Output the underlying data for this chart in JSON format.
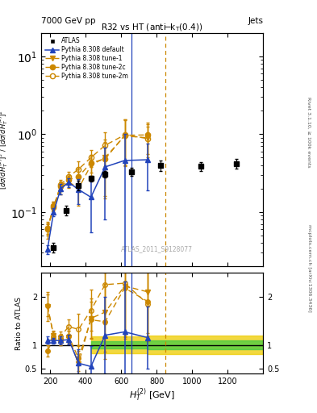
{
  "title_main": "R32 vs HT (anti-k$_{T}$(0.4))",
  "top_left_label": "7000 GeV pp",
  "top_right_label": "Jets",
  "watermark": "ATLAS_2011_S9128077",
  "rivet_label": "Rivet 3.1.10, ≥ 100k events",
  "arxiv_label": "mcplots.cern.ch [arXiv:1306.3436]",
  "xlabel": "$H_T^{(2)}$ [GeV]",
  "ylabel_ratio": "Ratio to ATLAS",
  "ylim_main_log": [
    0.02,
    20
  ],
  "ylim_ratio": [
    0.4,
    2.5
  ],
  "xlim": [
    150,
    1400
  ],
  "atlas_x": [
    220,
    290,
    360,
    430,
    510,
    660,
    820,
    1050,
    1250
  ],
  "atlas_y": [
    0.035,
    0.105,
    0.22,
    0.27,
    0.305,
    0.33,
    0.4,
    0.385,
    0.42
  ],
  "atlas_yerr_lo": [
    0.005,
    0.015,
    0.03,
    0.025,
    0.03,
    0.04,
    0.06,
    0.05,
    0.06
  ],
  "atlas_yerr_hi": [
    0.005,
    0.015,
    0.03,
    0.025,
    0.03,
    0.04,
    0.06,
    0.05,
    0.06
  ],
  "pythia_default_x": [
    185,
    220,
    260,
    305,
    360,
    430,
    510,
    620,
    750
  ],
  "pythia_default_y": [
    0.033,
    0.1,
    0.2,
    0.24,
    0.195,
    0.155,
    0.38,
    0.46,
    0.47
  ],
  "pythia_default_yerr_lo": [
    0.004,
    0.012,
    0.03,
    0.03,
    0.07,
    0.1,
    0.3,
    0.55,
    0.28
  ],
  "pythia_default_yerr_hi": [
    0.004,
    0.012,
    0.03,
    0.03,
    0.07,
    0.1,
    0.3,
    0.55,
    0.28
  ],
  "pythia_tune1_x": [
    185,
    220,
    260,
    305,
    360,
    430,
    510,
    620,
    750
  ],
  "pythia_tune1_y": [
    0.06,
    0.115,
    0.205,
    0.245,
    0.2,
    0.4,
    0.5,
    0.95,
    0.9
  ],
  "pythia_tune1_yerr_lo": [
    0.015,
    0.02,
    0.035,
    0.04,
    0.08,
    0.13,
    0.35,
    0.55,
    0.45
  ],
  "pythia_tune1_yerr_hi": [
    0.015,
    0.02,
    0.035,
    0.04,
    0.08,
    0.13,
    0.35,
    0.55,
    0.45
  ],
  "pythia_tune2c_x": [
    185,
    220,
    260,
    305,
    360,
    430,
    510,
    620,
    750
  ],
  "pythia_tune2c_y": [
    0.06,
    0.12,
    0.215,
    0.26,
    0.285,
    0.43,
    0.48,
    0.97,
    0.98
  ],
  "pythia_tune2c_yerr_lo": [
    0.01,
    0.015,
    0.03,
    0.035,
    0.08,
    0.11,
    0.32,
    0.58,
    0.42
  ],
  "pythia_tune2c_yerr_hi": [
    0.01,
    0.015,
    0.03,
    0.035,
    0.08,
    0.11,
    0.32,
    0.58,
    0.42
  ],
  "pythia_tune2m_x": [
    185,
    220,
    260,
    305,
    360,
    430,
    510,
    620,
    750
  ],
  "pythia_tune2m_y": [
    0.062,
    0.115,
    0.225,
    0.285,
    0.355,
    0.5,
    0.72,
    0.98,
    0.88
  ],
  "pythia_tune2m_yerr_lo": [
    0.01,
    0.018,
    0.035,
    0.04,
    0.09,
    0.12,
    0.33,
    0.58,
    0.38
  ],
  "pythia_tune2m_yerr_hi": [
    0.01,
    0.018,
    0.035,
    0.04,
    0.09,
    0.12,
    0.33,
    0.58,
    0.38
  ],
  "ratio_default_x": [
    185,
    220,
    260,
    305,
    360,
    430,
    510,
    620,
    750
  ],
  "ratio_default_y": [
    1.1,
    1.09,
    1.09,
    1.11,
    0.62,
    0.55,
    1.2,
    1.27,
    1.15
  ],
  "ratio_default_yerr": [
    0.08,
    0.06,
    0.08,
    0.1,
    0.28,
    0.42,
    0.8,
    1.05,
    0.65
  ],
  "ratio_tune1_x": [
    185,
    220,
    260,
    305,
    360,
    430,
    510,
    620,
    750
  ],
  "ratio_tune1_y": [
    1.8,
    1.2,
    1.1,
    1.16,
    0.6,
    1.55,
    1.68,
    2.22,
    2.1
  ],
  "ratio_tune1_yerr": [
    0.3,
    0.1,
    0.1,
    0.14,
    0.28,
    0.42,
    0.82,
    1.1,
    0.85
  ],
  "ratio_tune2c_x": [
    185,
    220,
    260,
    305,
    360,
    430,
    510,
    620,
    750
  ],
  "ratio_tune2c_y": [
    0.88,
    1.12,
    1.08,
    1.18,
    0.72,
    1.52,
    1.48,
    2.18,
    1.9
  ],
  "ratio_tune2c_yerr": [
    0.12,
    0.08,
    0.08,
    0.12,
    0.26,
    0.38,
    0.78,
    1.02,
    0.72
  ],
  "ratio_tune2m_x": [
    185,
    220,
    260,
    305,
    360,
    430,
    510,
    620,
    750
  ],
  "ratio_tune2m_y": [
    1.82,
    1.18,
    1.18,
    1.38,
    1.32,
    1.72,
    2.25,
    2.28,
    1.85
  ],
  "ratio_tune2m_yerr": [
    0.22,
    0.1,
    0.1,
    0.15,
    0.33,
    0.42,
    0.82,
    1.08,
    0.78
  ],
  "band_edges": [
    430,
    510,
    620,
    750,
    820,
    1050,
    1400
  ],
  "green_lo": [
    0.92,
    0.92,
    0.92,
    0.9,
    0.9,
    0.9,
    0.9
  ],
  "green_hi": [
    1.08,
    1.08,
    1.08,
    1.1,
    1.1,
    1.1,
    1.1
  ],
  "yellow_lo": [
    0.82,
    0.82,
    0.82,
    0.8,
    0.8,
    0.8,
    0.8
  ],
  "yellow_hi": [
    1.18,
    1.18,
    1.18,
    1.2,
    1.2,
    1.2,
    1.2
  ],
  "vline_blue_x": 660,
  "vline_orange_x": 850,
  "color_atlas": "#000000",
  "color_default": "#2244bb",
  "color_tune": "#cc8800",
  "color_green_band": "#44cc44",
  "color_yellow_band": "#eecc00",
  "bg_color": "#ffffff"
}
